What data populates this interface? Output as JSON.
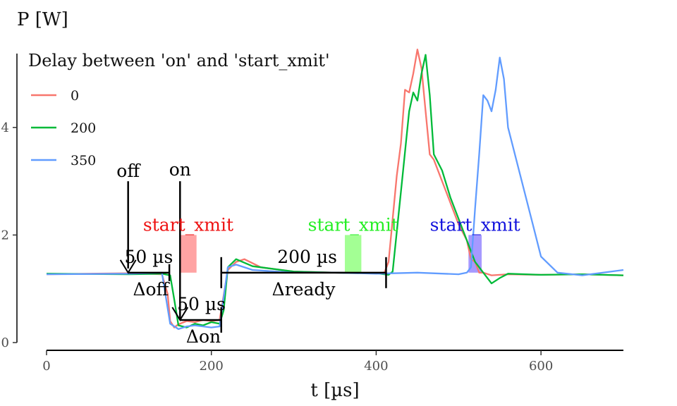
{
  "chart_data": {
    "type": "line",
    "ylabel": "P [W]",
    "xlabel": "t [µs]",
    "xlim": [
      0,
      700
    ],
    "ylim": [
      0,
      5.4
    ],
    "x_ticks": [
      0,
      200,
      400,
      600
    ],
    "y_ticks": [
      0,
      2,
      4
    ],
    "grid": false,
    "legend": {
      "title": "Delay between 'on' and 'start_xmit'",
      "placement": "top-left"
    },
    "series": [
      {
        "name": "0",
        "color": "#F8766D",
        "x": [
          0,
          100,
          140,
          147,
          150,
          155,
          160,
          170,
          180,
          190,
          200,
          210,
          220,
          230,
          240,
          260,
          300,
          350,
          400,
          410,
          415,
          420,
          425,
          430,
          435,
          440,
          445,
          450,
          455,
          460,
          465,
          470,
          480,
          490,
          500,
          510,
          515,
          520,
          525,
          530,
          540,
          560,
          600,
          650,
          700
        ],
        "y": [
          1.27,
          1.29,
          1.27,
          0.9,
          0.4,
          0.28,
          0.34,
          0.4,
          0.38,
          0.42,
          0.4,
          0.42,
          1.35,
          1.5,
          1.55,
          1.4,
          1.32,
          1.3,
          1.29,
          1.3,
          1.5,
          2.3,
          3.1,
          3.7,
          4.7,
          4.65,
          5.0,
          5.45,
          5.1,
          4.3,
          3.5,
          3.4,
          3.0,
          2.6,
          2.2,
          1.9,
          1.55,
          1.5,
          1.3,
          1.3,
          1.25,
          1.27,
          1.26,
          1.27,
          1.25
        ]
      },
      {
        "name": "200",
        "color": "#00BA38",
        "x": [
          0,
          100,
          140,
          150,
          155,
          160,
          170,
          180,
          190,
          200,
          210,
          215,
          220,
          230,
          250,
          300,
          350,
          400,
          410,
          415,
          420,
          430,
          440,
          445,
          450,
          455,
          460,
          465,
          470,
          480,
          490,
          500,
          510,
          520,
          530,
          540,
          550,
          560,
          600,
          650,
          700
        ],
        "y": [
          1.28,
          1.27,
          1.28,
          1.25,
          0.8,
          0.32,
          0.28,
          0.35,
          0.32,
          0.38,
          0.35,
          0.6,
          1.4,
          1.55,
          1.42,
          1.32,
          1.3,
          1.29,
          1.27,
          1.26,
          1.32,
          2.8,
          4.3,
          4.65,
          4.5,
          5.0,
          5.35,
          4.6,
          3.5,
          3.2,
          2.7,
          2.3,
          1.9,
          1.5,
          1.3,
          1.1,
          1.2,
          1.28,
          1.26,
          1.27,
          1.25
        ]
      },
      {
        "name": "350",
        "color": "#619CFF",
        "x": [
          0,
          100,
          140,
          150,
          160,
          170,
          180,
          190,
          200,
          210,
          220,
          230,
          250,
          300,
          350,
          400,
          450,
          500,
          510,
          515,
          520,
          525,
          530,
          535,
          540,
          545,
          550,
          555,
          560,
          570,
          580,
          590,
          600,
          620,
          650,
          700
        ],
        "y": [
          1.27,
          1.28,
          1.3,
          0.35,
          0.25,
          0.3,
          0.32,
          0.3,
          0.28,
          0.3,
          1.4,
          1.45,
          1.35,
          1.3,
          1.3,
          1.28,
          1.3,
          1.27,
          1.3,
          1.4,
          2.5,
          3.5,
          4.6,
          4.5,
          4.3,
          4.7,
          5.3,
          4.9,
          4.0,
          3.4,
          2.8,
          2.2,
          1.6,
          1.3,
          1.25,
          1.35
        ]
      }
    ],
    "annotations": {
      "off": {
        "label": "off",
        "x": 99
      },
      "on": {
        "label": "on",
        "x": 162
      },
      "delta_off": {
        "label": "50 µs",
        "sub": "Δoff",
        "x_start": 99,
        "x_end": 149,
        "y": 1.3
      },
      "delta_on": {
        "label": "50 µs",
        "sub": "Δon",
        "x_start": 162,
        "x_end": 212,
        "y": 0.42
      },
      "delta_ready": {
        "label": "200 µs",
        "sub": "Δready",
        "x_start": 212,
        "x_end": 412,
        "y": 1.3
      },
      "start_xmit": [
        {
          "label": "start_xmit",
          "color": "#ee1111",
          "fill": "#ff9999",
          "x_start": 162,
          "x_end": 182,
          "y_min": 1.3,
          "y_max": 2.0
        },
        {
          "label": "start_xmit",
          "color": "#22ee22",
          "fill": "#99ff88",
          "x_start": 362,
          "x_end": 382,
          "y_min": 1.3,
          "y_max": 2.0
        },
        {
          "label": "start_xmit",
          "color": "#1111dd",
          "fill": "#8877ff",
          "x_start": 512,
          "x_end": 528,
          "y_min": 1.3,
          "y_max": 2.0
        }
      ]
    }
  }
}
